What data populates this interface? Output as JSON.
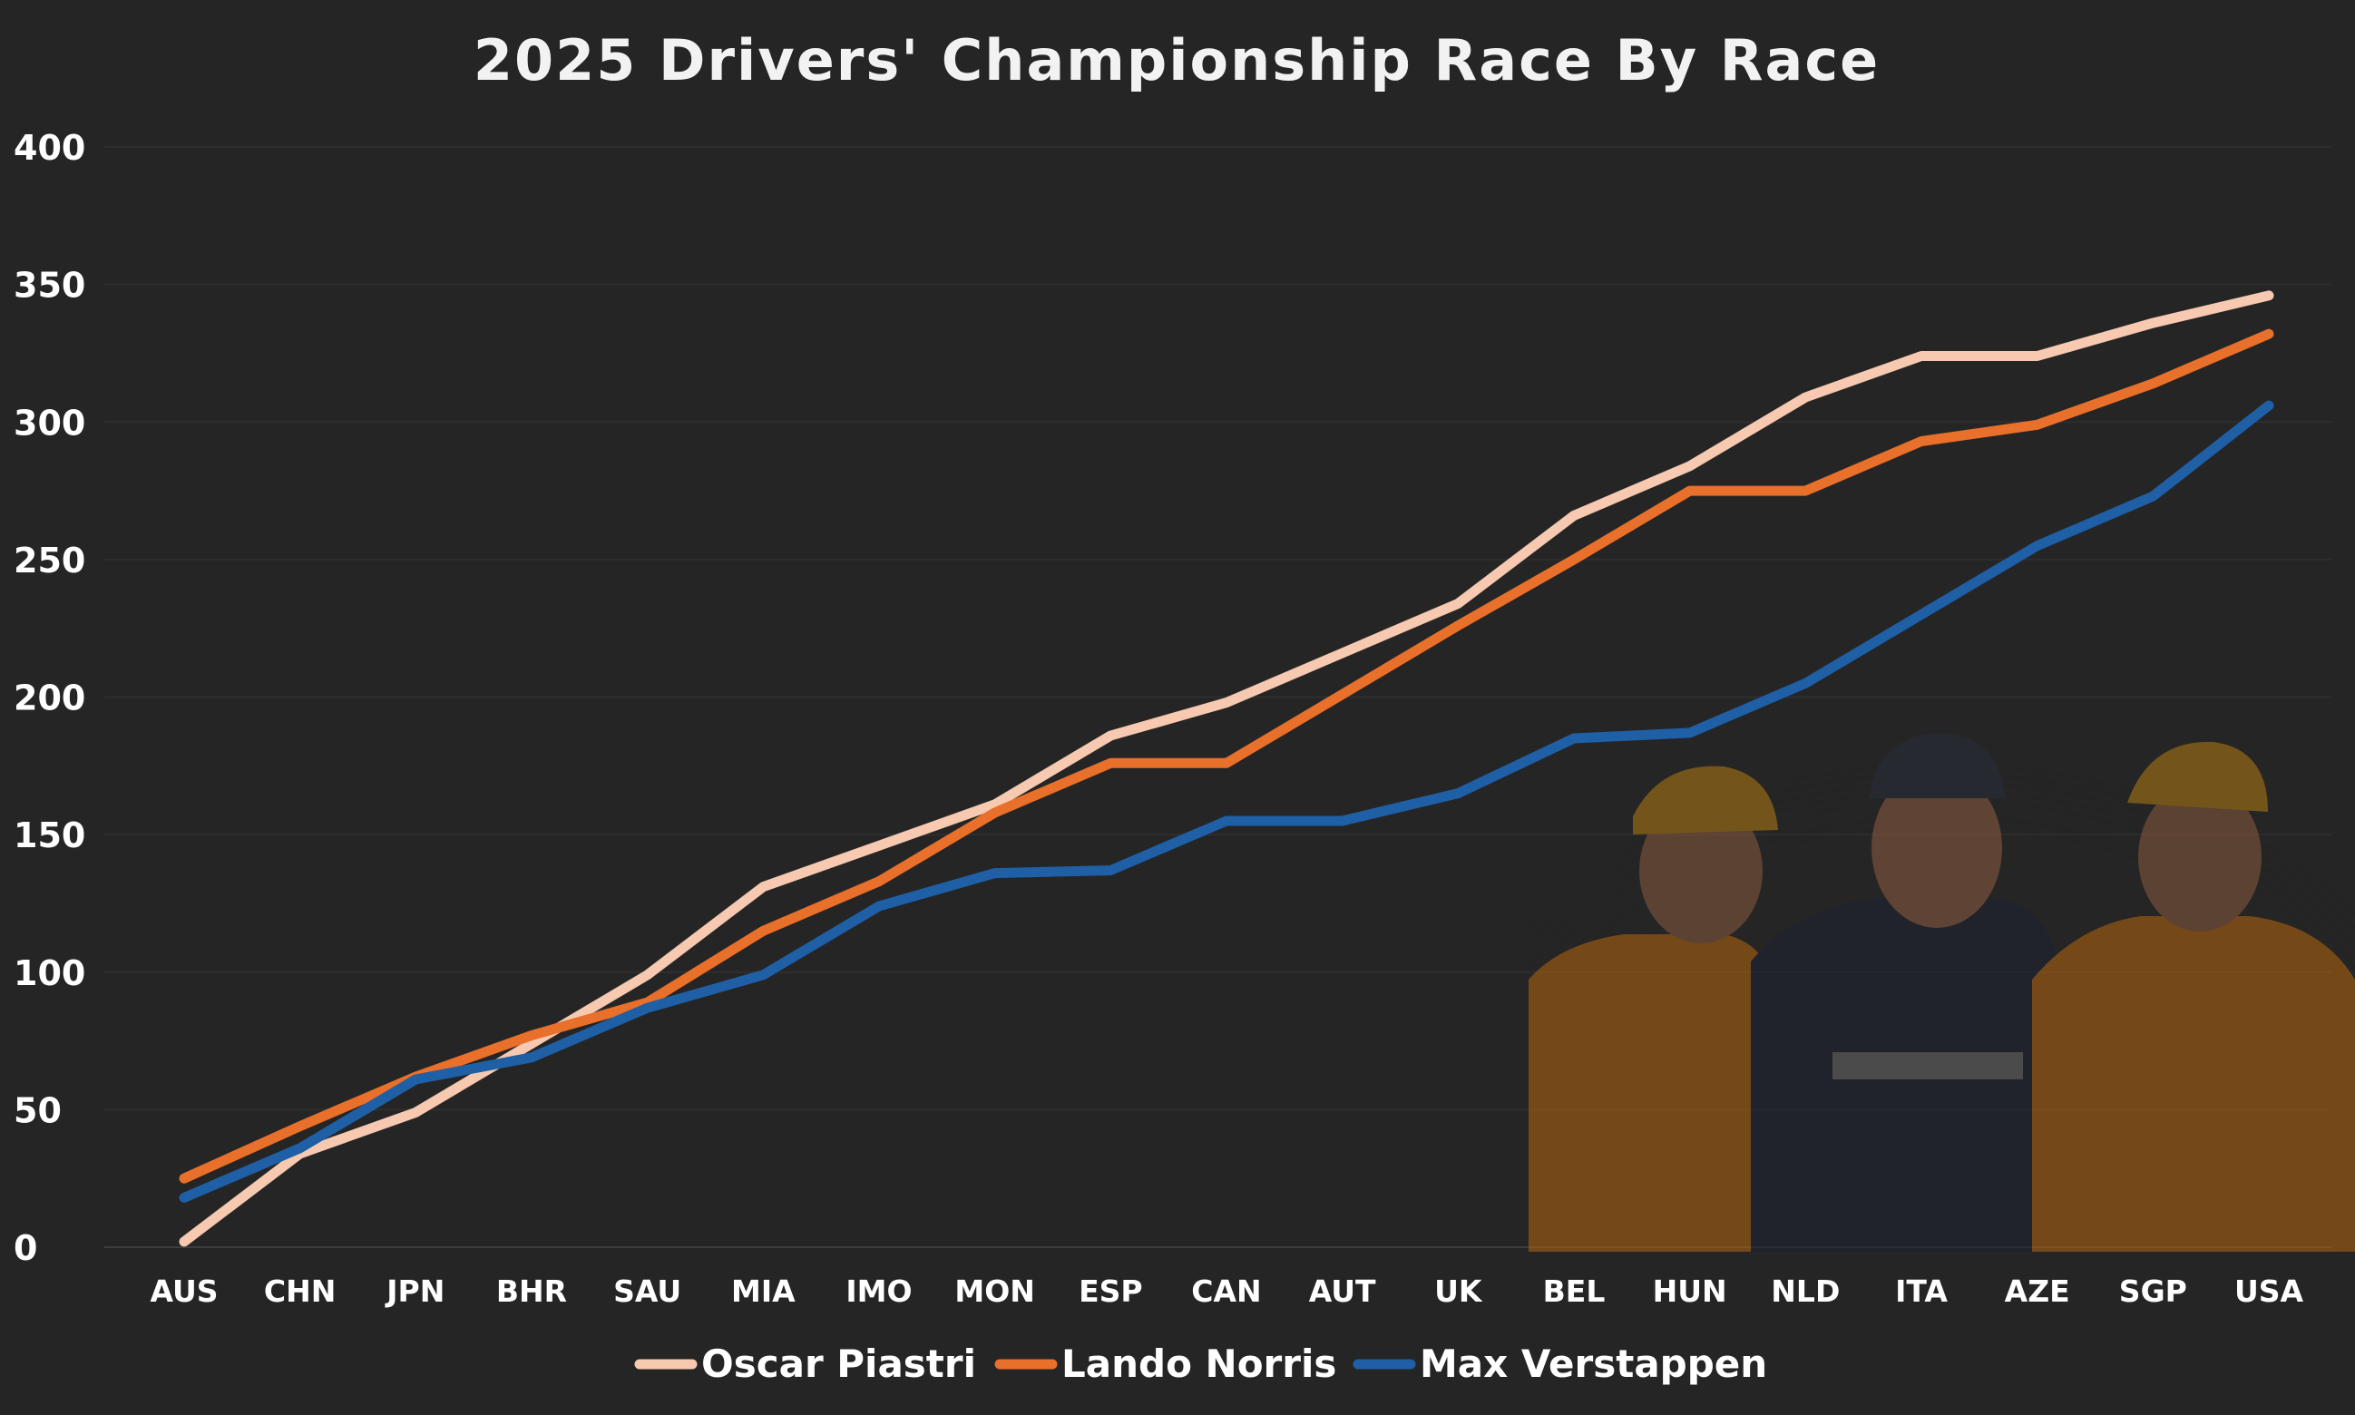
{
  "chart_data": {
    "type": "line",
    "title": "2025 Drivers' Championship Race By Race",
    "xlabel": "",
    "ylabel": "",
    "ylim": [
      0,
      400
    ],
    "yticks": [
      0,
      50,
      100,
      150,
      200,
      250,
      300,
      350,
      400
    ],
    "grid": true,
    "legend_position": "bottom",
    "categories": [
      "AUS",
      "CHN",
      "JPN",
      "BHR",
      "SAU",
      "MIA",
      "IMO",
      "MON",
      "ESP",
      "CAN",
      "AUT",
      "UK",
      "BEL",
      "HUN",
      "NLD",
      "ITA",
      "AZE",
      "SGP",
      "USA"
    ],
    "series": [
      {
        "name": "Oscar Piastri",
        "color": "#f6c9b0",
        "values": [
          2,
          34,
          49,
          74,
          99,
          131,
          146,
          161,
          186,
          198,
          216,
          234,
          266,
          284,
          309,
          324,
          324,
          336,
          346
        ]
      },
      {
        "name": "Lando Norris",
        "color": "#e8702a",
        "values": [
          25,
          44,
          62,
          77,
          89,
          115,
          133,
          158,
          176,
          176,
          201,
          226,
          250,
          275,
          275,
          293,
          299,
          314,
          332
        ]
      },
      {
        "name": "Max Verstappen",
        "color": "#1f5fa6",
        "values": [
          18,
          36,
          61,
          69,
          87,
          99,
          124,
          136,
          137,
          155,
          155,
          165,
          185,
          187,
          205,
          230,
          255,
          273,
          306
        ]
      }
    ]
  },
  "photo": {
    "icon": "three-drivers-photo"
  }
}
